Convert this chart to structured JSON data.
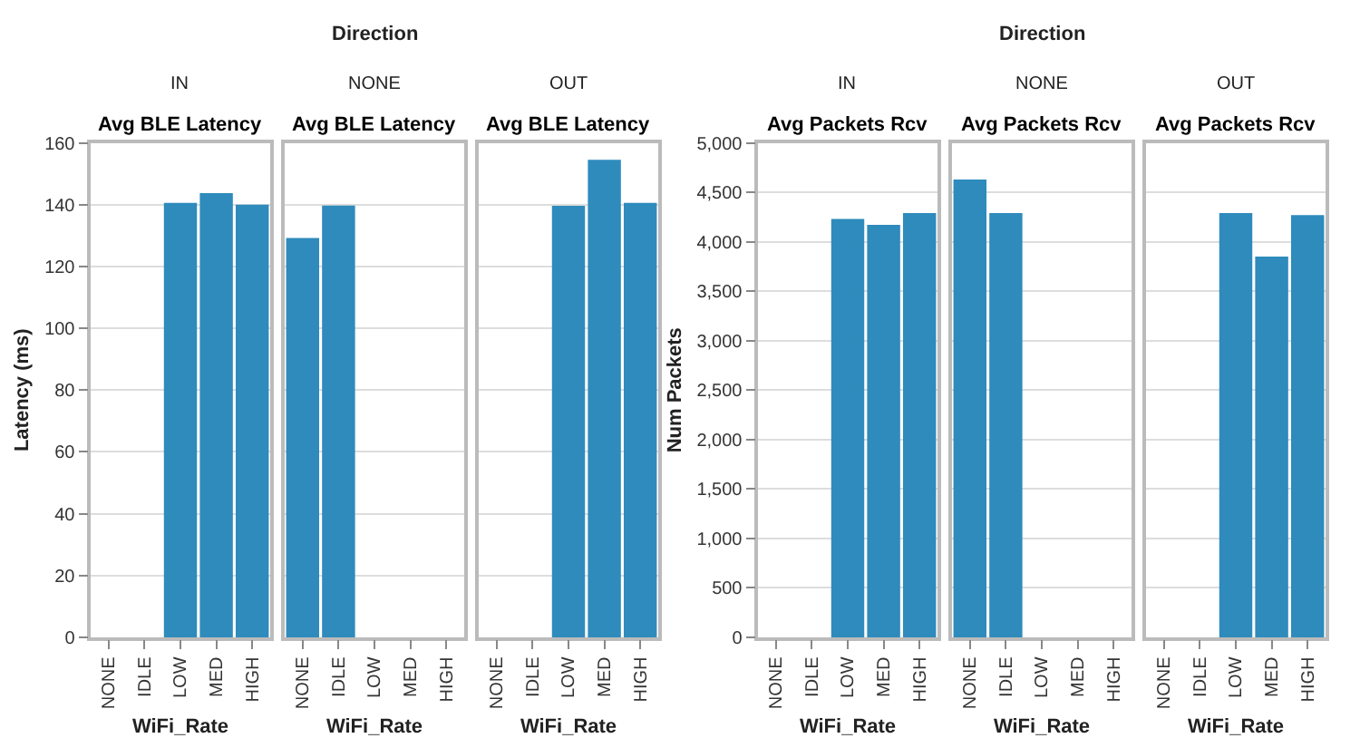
{
  "chart_data": [
    {
      "type": "bar",
      "title": "Avg BLE Latency",
      "subtitle": "IN",
      "annotations": [
        "Direction"
      ],
      "xlabel": "WiFi_Rate",
      "ylabel": "Latency (ms)",
      "categories": [
        "NONE",
        "IDLE",
        "LOW",
        "MED",
        "HIGH"
      ],
      "values": [
        null,
        null,
        140.6,
        143.7,
        140.0
      ],
      "color": "#2e8bbc",
      "ylim": [
        0,
        160
      ],
      "yticks": [
        0,
        20,
        40,
        60,
        80,
        100,
        120,
        140,
        160
      ],
      "grid": "y"
    },
    {
      "type": "bar",
      "title": "Avg BLE Latency",
      "subtitle": "NONE",
      "xlabel": "WiFi_Rate",
      "categories": [
        "NONE",
        "IDLE",
        "LOW",
        "MED",
        "HIGH"
      ],
      "values": [
        129.2,
        139.7,
        null,
        null,
        null
      ],
      "color": "#2e8bbc",
      "ylim": [
        0,
        160
      ],
      "yticks": [
        0,
        20,
        40,
        60,
        80,
        100,
        120,
        140,
        160
      ],
      "grid": "y",
      "tick_labels": "x"
    },
    {
      "type": "bar",
      "title": "Avg BLE Latency",
      "subtitle": "OUT",
      "xlabel": "WiFi_Rate",
      "categories": [
        "NONE",
        "IDLE",
        "LOW",
        "MED",
        "HIGH"
      ],
      "values": [
        null,
        null,
        139.6,
        154.5,
        140.6
      ],
      "color": "#2e8bbc",
      "ylim": [
        0,
        160
      ],
      "yticks": [
        0,
        20,
        40,
        60,
        80,
        100,
        120,
        140,
        160
      ],
      "grid": "y",
      "tick_labels": "x"
    },
    {
      "type": "bar",
      "title": "Avg Packets Rcv",
      "subtitle": "IN",
      "annotations": [
        "Direction"
      ],
      "xlabel": "WiFi_Rate",
      "ylabel": "Num Packets",
      "categories": [
        "NONE",
        "IDLE",
        "LOW",
        "MED",
        "HIGH"
      ],
      "values": [
        null,
        null,
        4230,
        4170,
        4290
      ],
      "color": "#2e8bbc",
      "ylim": [
        0,
        5000
      ],
      "yticks": [
        0,
        500,
        {
          "value": 1000,
          "label": "1,000"
        },
        {
          "value": 1500,
          "label": "1,500"
        },
        {
          "value": 2000,
          "label": "2,000"
        },
        {
          "value": 2500,
          "label": "2,500"
        },
        {
          "value": 3000,
          "label": "3,000"
        },
        {
          "value": 3500,
          "label": "3,500"
        },
        {
          "value": 4000,
          "label": "4,000"
        },
        {
          "value": 4500,
          "label": "4,500"
        },
        {
          "value": 5000,
          "label": "5,000"
        }
      ],
      "grid": "y"
    },
    {
      "type": "bar",
      "title": "Avg Packets Rcv",
      "subtitle": "NONE",
      "xlabel": "WiFi_Rate",
      "categories": [
        "NONE",
        "IDLE",
        "LOW",
        "MED",
        "HIGH"
      ],
      "values": [
        4630,
        4290,
        null,
        null,
        null
      ],
      "color": "#2e8bbc",
      "ylim": [
        0,
        5000
      ],
      "yticks": [
        0,
        500,
        1000,
        1500,
        2000,
        2500,
        3000,
        3500,
        4000,
        4500,
        5000
      ],
      "grid": "y",
      "tick_labels": "x"
    },
    {
      "type": "bar",
      "title": "Avg Packets Rcv",
      "subtitle": "OUT",
      "xlabel": "WiFi_Rate",
      "categories": [
        "NONE",
        "IDLE",
        "LOW",
        "MED",
        "HIGH"
      ],
      "values": [
        null,
        null,
        4290,
        3850,
        4270
      ],
      "color": "#2e8bbc",
      "ylim": [
        0,
        5000
      ],
      "yticks": [
        0,
        500,
        1000,
        1500,
        2000,
        2500,
        3000,
        3500,
        4000,
        4500,
        5000
      ],
      "grid": "y",
      "tick_labels": "x"
    }
  ]
}
